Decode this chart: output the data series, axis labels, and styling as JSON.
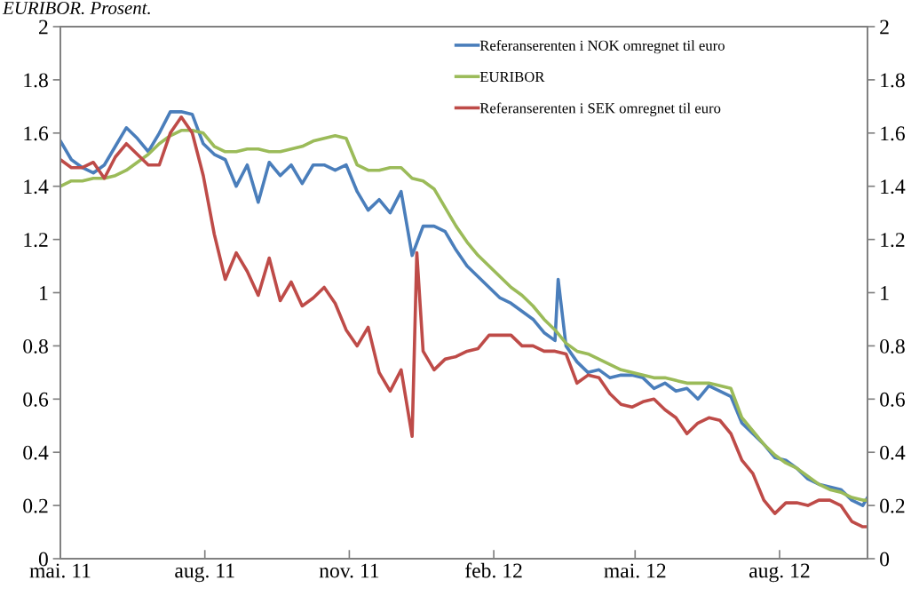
{
  "chart_data": {
    "type": "line",
    "title": "EURIBOR. Prosent.",
    "x": [
      "2011-05-01",
      "2011-05-08",
      "2011-05-15",
      "2011-05-22",
      "2011-05-29",
      "2011-06-05",
      "2011-06-12",
      "2011-06-19",
      "2011-06-26",
      "2011-07-03",
      "2011-07-10",
      "2011-07-17",
      "2011-07-24",
      "2011-07-31",
      "2011-08-07",
      "2011-08-14",
      "2011-08-21",
      "2011-08-28",
      "2011-09-04",
      "2011-09-11",
      "2011-09-18",
      "2011-09-25",
      "2011-10-02",
      "2011-10-09",
      "2011-10-16",
      "2011-10-23",
      "2011-10-30",
      "2011-11-06",
      "2011-11-13",
      "2011-11-20",
      "2011-11-27",
      "2011-12-04",
      "2011-12-11",
      "2011-12-18",
      "2011-12-25",
      "2012-01-01",
      "2012-01-08",
      "2012-01-15",
      "2012-01-22",
      "2012-01-29",
      "2012-02-05",
      "2012-02-12",
      "2012-02-19",
      "2012-02-26",
      "2012-03-04",
      "2012-03-11",
      "2012-03-18",
      "2012-03-25",
      "2012-04-01",
      "2012-04-08",
      "2012-04-15",
      "2012-04-22",
      "2012-04-29",
      "2012-05-06",
      "2012-05-13",
      "2012-05-20",
      "2012-05-27",
      "2012-06-03",
      "2012-06-10",
      "2012-06-17",
      "2012-06-24",
      "2012-07-01",
      "2012-07-08",
      "2012-07-15",
      "2012-07-22",
      "2012-07-29",
      "2012-08-05",
      "2012-08-12",
      "2012-08-19",
      "2012-08-26",
      "2012-09-02",
      "2012-09-09",
      "2012-09-16",
      "2012-09-23",
      "2012-09-26"
    ],
    "series": [
      {
        "name": "Referanserenten i NOK omregnet til euro",
        "color": "#4a7ebb",
        "x": [
          "2011-05-01",
          "2011-05-08",
          "2011-05-15",
          "2011-05-22",
          "2011-05-29",
          "2011-06-05",
          "2011-06-12",
          "2011-06-19",
          "2011-06-26",
          "2011-07-03",
          "2011-07-10",
          "2011-07-17",
          "2011-07-24",
          "2011-07-31",
          "2011-08-07",
          "2011-08-14",
          "2011-08-21",
          "2011-08-28",
          "2011-09-04",
          "2011-09-11",
          "2011-09-18",
          "2011-09-25",
          "2011-10-02",
          "2011-10-09",
          "2011-10-16",
          "2011-10-23",
          "2011-10-30",
          "2011-11-06",
          "2011-11-13",
          "2011-11-20",
          "2011-11-27",
          "2011-12-04",
          "2011-12-11",
          "2011-12-18",
          "2011-12-25",
          "2012-01-01",
          "2012-01-08",
          "2012-01-15",
          "2012-01-22",
          "2012-01-29",
          "2012-02-05",
          "2012-02-12",
          "2012-02-19",
          "2012-02-26",
          "2012-03-04",
          "2012-03-11",
          "2012-03-13",
          "2012-03-18",
          "2012-03-25",
          "2012-04-01",
          "2012-04-08",
          "2012-04-15",
          "2012-04-22",
          "2012-04-29",
          "2012-05-06",
          "2012-05-13",
          "2012-05-20",
          "2012-05-27",
          "2012-06-03",
          "2012-06-10",
          "2012-06-17",
          "2012-06-24",
          "2012-07-01",
          "2012-07-08",
          "2012-07-15",
          "2012-07-22",
          "2012-07-29",
          "2012-08-05",
          "2012-08-12",
          "2012-08-19",
          "2012-08-26",
          "2012-09-02",
          "2012-09-09",
          "2012-09-16",
          "2012-09-23",
          "2012-09-26"
        ],
        "values": [
          1.57,
          1.5,
          1.47,
          1.45,
          1.48,
          1.55,
          1.62,
          1.58,
          1.53,
          1.6,
          1.68,
          1.68,
          1.67,
          1.56,
          1.52,
          1.5,
          1.4,
          1.48,
          1.34,
          1.49,
          1.44,
          1.48,
          1.41,
          1.48,
          1.48,
          1.46,
          1.48,
          1.38,
          1.31,
          1.35,
          1.3,
          1.38,
          1.14,
          1.25,
          1.25,
          1.23,
          1.16,
          1.1,
          1.06,
          1.02,
          0.98,
          0.96,
          0.93,
          0.9,
          0.85,
          0.82,
          1.05,
          0.8,
          0.74,
          0.7,
          0.71,
          0.68,
          0.69,
          0.69,
          0.68,
          0.64,
          0.66,
          0.63,
          0.64,
          0.6,
          0.65,
          0.63,
          0.61,
          0.51,
          0.47,
          0.43,
          0.38,
          0.37,
          0.34,
          0.3,
          0.28,
          0.27,
          0.26,
          0.22,
          0.2,
          0.23
        ]
      },
      {
        "name": "EURIBOR",
        "color": "#9bbb59",
        "values": [
          1.4,
          1.42,
          1.42,
          1.43,
          1.43,
          1.44,
          1.46,
          1.49,
          1.52,
          1.56,
          1.59,
          1.61,
          1.61,
          1.6,
          1.55,
          1.53,
          1.53,
          1.54,
          1.54,
          1.53,
          1.53,
          1.54,
          1.55,
          1.57,
          1.58,
          1.59,
          1.58,
          1.48,
          1.46,
          1.46,
          1.47,
          1.47,
          1.43,
          1.42,
          1.39,
          1.32,
          1.25,
          1.19,
          1.14,
          1.1,
          1.06,
          1.02,
          0.99,
          0.95,
          0.9,
          0.86,
          0.81,
          0.78,
          0.77,
          0.75,
          0.73,
          0.71,
          0.7,
          0.69,
          0.68,
          0.68,
          0.67,
          0.66,
          0.66,
          0.66,
          0.65,
          0.64,
          0.53,
          0.48,
          0.43,
          0.39,
          0.36,
          0.34,
          0.31,
          0.28,
          0.26,
          0.25,
          0.23,
          0.22,
          0.22
        ]
      },
      {
        "name": "Referanserenten i SEK omregnet til euro",
        "color": "#be4b48",
        "x": [
          "2011-05-01",
          "2011-05-08",
          "2011-05-15",
          "2011-05-22",
          "2011-05-29",
          "2011-06-05",
          "2011-06-12",
          "2011-06-19",
          "2011-06-26",
          "2011-07-03",
          "2011-07-10",
          "2011-07-17",
          "2011-07-24",
          "2011-07-31",
          "2011-08-07",
          "2011-08-14",
          "2011-08-21",
          "2011-08-28",
          "2011-09-04",
          "2011-09-11",
          "2011-09-18",
          "2011-09-25",
          "2011-10-02",
          "2011-10-09",
          "2011-10-16",
          "2011-10-23",
          "2011-10-30",
          "2011-11-06",
          "2011-11-13",
          "2011-11-20",
          "2011-11-27",
          "2011-12-04",
          "2011-12-11",
          "2011-12-14",
          "2011-12-18",
          "2011-12-25",
          "2012-01-01",
          "2012-01-08",
          "2012-01-15",
          "2012-01-22",
          "2012-01-29",
          "2012-02-05",
          "2012-02-12",
          "2012-02-19",
          "2012-02-26",
          "2012-03-04",
          "2012-03-11",
          "2012-03-18",
          "2012-03-25",
          "2012-04-01",
          "2012-04-08",
          "2012-04-15",
          "2012-04-22",
          "2012-04-29",
          "2012-05-06",
          "2012-05-13",
          "2012-05-20",
          "2012-05-27",
          "2012-06-03",
          "2012-06-10",
          "2012-06-17",
          "2012-06-24",
          "2012-07-01",
          "2012-07-08",
          "2012-07-15",
          "2012-07-22",
          "2012-07-29",
          "2012-08-05",
          "2012-08-12",
          "2012-08-19",
          "2012-08-26",
          "2012-09-02",
          "2012-09-09",
          "2012-09-16",
          "2012-09-23",
          "2012-09-26"
        ],
        "values": [
          1.5,
          1.47,
          1.47,
          1.49,
          1.43,
          1.51,
          1.56,
          1.52,
          1.48,
          1.48,
          1.6,
          1.66,
          1.6,
          1.44,
          1.22,
          1.05,
          1.15,
          1.08,
          0.99,
          1.13,
          0.97,
          1.04,
          0.95,
          0.98,
          1.02,
          0.96,
          0.86,
          0.8,
          0.87,
          0.7,
          0.63,
          0.71,
          0.46,
          1.15,
          0.78,
          0.71,
          0.75,
          0.76,
          0.78,
          0.79,
          0.84,
          0.84,
          0.84,
          0.8,
          0.8,
          0.78,
          0.78,
          0.77,
          0.66,
          0.69,
          0.68,
          0.62,
          0.58,
          0.57,
          0.59,
          0.6,
          0.56,
          0.53,
          0.47,
          0.51,
          0.53,
          0.52,
          0.47,
          0.37,
          0.32,
          0.22,
          0.17,
          0.21,
          0.21,
          0.2,
          0.22,
          0.22,
          0.2,
          0.14,
          0.12,
          0.12
        ]
      }
    ],
    "xlim": [
      "2011-05-01",
      "2012-09-26"
    ],
    "xticks": [
      {
        "value": "2011-05-01",
        "label": "mai. 11"
      },
      {
        "value": "2011-08-01",
        "label": "aug. 11"
      },
      {
        "value": "2011-11-01",
        "label": "nov. 11"
      },
      {
        "value": "2012-02-01",
        "label": "feb. 12"
      },
      {
        "value": "2012-05-01",
        "label": "mai. 12"
      },
      {
        "value": "2012-08-01",
        "label": "aug. 12"
      }
    ],
    "ylim": [
      0,
      2
    ],
    "yticks": [
      0,
      0.2,
      0.4,
      0.6,
      0.8,
      1,
      1.2,
      1.4,
      1.6,
      1.8,
      2
    ],
    "y2lim": [
      0,
      2
    ],
    "y2ticks": [
      0,
      0.2,
      0.4,
      0.6,
      0.8,
      1,
      1.2,
      1.4,
      1.6,
      1.8,
      2
    ],
    "legend": "top right",
    "grid": false,
    "line_style": "solid"
  }
}
